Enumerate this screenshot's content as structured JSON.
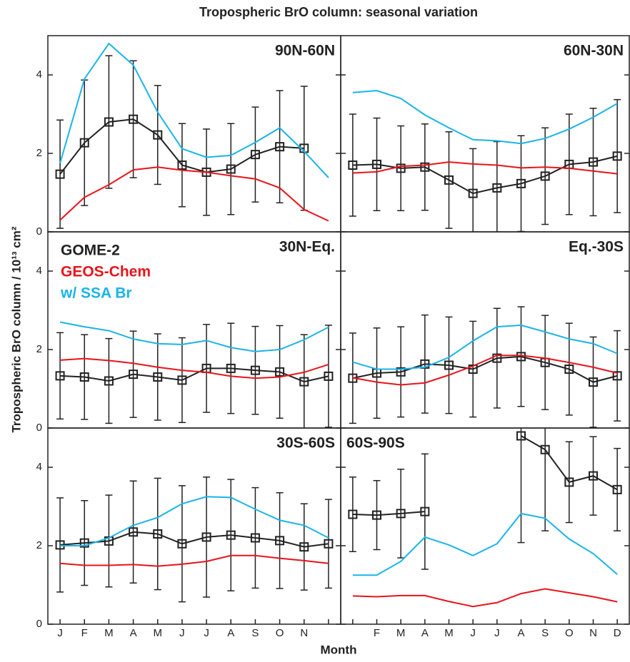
{
  "title": "Tropospheric BrO column: seasonal variation",
  "y_label": "Tropospheric BrO column / 10¹³ cm²",
  "x_label": "Month",
  "chart_data": [
    {
      "type": "line",
      "label": "90N-60N",
      "label_position": "right",
      "ylim": [
        0,
        5
      ],
      "yticks": [
        0,
        2,
        4
      ],
      "series": [
        {
          "color": "#222222",
          "marker": "square",
          "values": [
            1.47,
            2.27,
            2.8,
            2.87,
            2.47,
            1.7,
            1.52,
            1.6,
            1.97,
            2.17,
            2.13,
            null
          ],
          "errors": [
            1.38,
            1.6,
            1.69,
            1.49,
            1.26,
            1.06,
            1.1,
            1.16,
            1.21,
            1.43,
            1.58,
            null
          ]
        },
        {
          "color": "#e8141b",
          "values": [
            0.3,
            0.88,
            1.2,
            1.58,
            1.65,
            1.57,
            1.52,
            1.43,
            1.35,
            1.12,
            0.57,
            0.28
          ]
        },
        {
          "color": "#1ab4e8",
          "values": [
            1.75,
            3.9,
            4.8,
            4.25,
            3.05,
            2.12,
            1.9,
            1.95,
            2.28,
            2.65,
            2.05,
            1.38
          ]
        }
      ]
    },
    {
      "type": "line",
      "label": "60N-30N",
      "label_position": "right",
      "ylim": [
        0,
        5
      ],
      "series": [
        {
          "color": "#222222",
          "marker": "square",
          "values": [
            1.7,
            1.72,
            1.62,
            1.65,
            1.32,
            0.98,
            1.12,
            1.23,
            1.42,
            1.72,
            1.78,
            1.93
          ],
          "errors": [
            1.3,
            1.18,
            1.08,
            1.1,
            1.23,
            1.14,
            1.18,
            1.22,
            1.23,
            1.28,
            1.37,
            1.44
          ]
        },
        {
          "color": "#e8141b",
          "values": [
            1.5,
            1.53,
            1.67,
            1.7,
            1.78,
            1.73,
            1.7,
            1.63,
            1.65,
            1.62,
            1.55,
            1.48
          ]
        },
        {
          "color": "#1ab4e8",
          "values": [
            3.55,
            3.6,
            3.4,
            2.98,
            2.65,
            2.35,
            2.32,
            2.25,
            2.38,
            2.62,
            2.92,
            3.27
          ]
        }
      ]
    },
    {
      "type": "line",
      "label": "30N-Eq.",
      "label_position": "right",
      "ylim": [
        0,
        5
      ],
      "yticks": [
        0,
        2,
        4
      ],
      "series": [
        {
          "name": "GOME-2",
          "color": "#222222",
          "marker": "square",
          "values": [
            1.33,
            1.3,
            1.2,
            1.37,
            1.3,
            1.22,
            1.52,
            1.52,
            1.47,
            1.43,
            1.18,
            1.32
          ],
          "errors": [
            1.1,
            1.08,
            1.08,
            1.1,
            1.1,
            1.08,
            1.12,
            1.15,
            1.12,
            1.18,
            1.2,
            1.3
          ]
        },
        {
          "name": "GEOS-Chem",
          "color": "#e8141b",
          "values": [
            1.73,
            1.77,
            1.72,
            1.65,
            1.55,
            1.47,
            1.42,
            1.32,
            1.27,
            1.3,
            1.42,
            1.62
          ]
        },
        {
          "name": "w/ SSA Br",
          "color": "#1ab4e8",
          "values": [
            2.7,
            2.58,
            2.48,
            2.27,
            2.15,
            2.13,
            2.23,
            2.05,
            1.95,
            2.0,
            2.25,
            2.57
          ]
        }
      ]
    },
    {
      "type": "line",
      "label": "Eq.-30S",
      "label_position": "right",
      "ylim": [
        0,
        5
      ],
      "series": [
        {
          "color": "#222222",
          "marker": "square",
          "values": [
            1.27,
            1.4,
            1.43,
            1.63,
            1.6,
            1.5,
            1.78,
            1.82,
            1.67,
            1.5,
            1.17,
            1.33
          ],
          "errors": [
            1.15,
            1.15,
            1.15,
            1.25,
            1.23,
            1.22,
            1.27,
            1.27,
            1.2,
            1.17,
            1.15,
            1.15
          ]
        },
        {
          "color": "#e8141b",
          "values": [
            1.28,
            1.17,
            1.1,
            1.15,
            1.35,
            1.58,
            1.85,
            1.85,
            1.78,
            1.67,
            1.55,
            1.4
          ]
        },
        {
          "color": "#1ab4e8",
          "values": [
            1.68,
            1.5,
            1.5,
            1.55,
            1.8,
            2.22,
            2.58,
            2.62,
            2.45,
            2.27,
            2.15,
            1.9
          ]
        }
      ]
    },
    {
      "type": "line",
      "label": "30S-60S",
      "label_position": "right",
      "ylim": [
        0,
        5
      ],
      "yticks": [
        0,
        2,
        4
      ],
      "categories": [
        "J",
        "F",
        "M",
        "A",
        "M",
        "J",
        "J",
        "A",
        "S",
        "O",
        "N",
        null
      ],
      "series": [
        {
          "color": "#222222",
          "marker": "square",
          "values": [
            2.02,
            2.07,
            2.12,
            2.35,
            2.3,
            2.05,
            2.22,
            2.27,
            2.2,
            2.13,
            1.97,
            2.05
          ],
          "errors": [
            1.2,
            1.08,
            1.17,
            1.3,
            1.42,
            1.48,
            1.53,
            1.42,
            1.28,
            1.22,
            1.1,
            1.13
          ]
        },
        {
          "color": "#e8141b",
          "values": [
            1.55,
            1.5,
            1.5,
            1.52,
            1.48,
            1.53,
            1.6,
            1.75,
            1.75,
            1.68,
            1.62,
            1.55
          ]
        },
        {
          "color": "#1ab4e8",
          "values": [
            2.0,
            2.0,
            2.2,
            2.52,
            2.72,
            3.07,
            3.25,
            3.23,
            2.93,
            2.65,
            2.52,
            2.2
          ]
        }
      ]
    },
    {
      "type": "line",
      "label": "60S-90S",
      "label_position": "left",
      "ylim": [
        0,
        5
      ],
      "categories": [
        null,
        "F",
        "M",
        "A",
        "M",
        "J",
        "J",
        "A",
        "S",
        "O",
        "N",
        "D"
      ],
      "series": [
        {
          "color": "#222222",
          "marker": "square",
          "values": [
            2.8,
            2.78,
            2.82,
            2.87,
            null,
            null,
            null,
            4.8,
            4.45,
            3.62,
            3.78,
            3.43
          ],
          "errors": [
            0.95,
            0.88,
            1.13,
            1.47,
            null,
            null,
            null,
            2.72,
            2.07,
            1.03,
            1.0,
            1.05
          ]
        },
        {
          "color": "#e8141b",
          "values": [
            0.72,
            0.7,
            0.73,
            0.73,
            0.58,
            0.45,
            0.55,
            0.78,
            0.9,
            0.8,
            0.7,
            0.57
          ]
        },
        {
          "color": "#1ab4e8",
          "values": [
            1.25,
            1.25,
            1.6,
            2.22,
            2.02,
            1.75,
            2.05,
            2.82,
            2.7,
            2.17,
            1.8,
            1.27
          ]
        }
      ]
    }
  ]
}
